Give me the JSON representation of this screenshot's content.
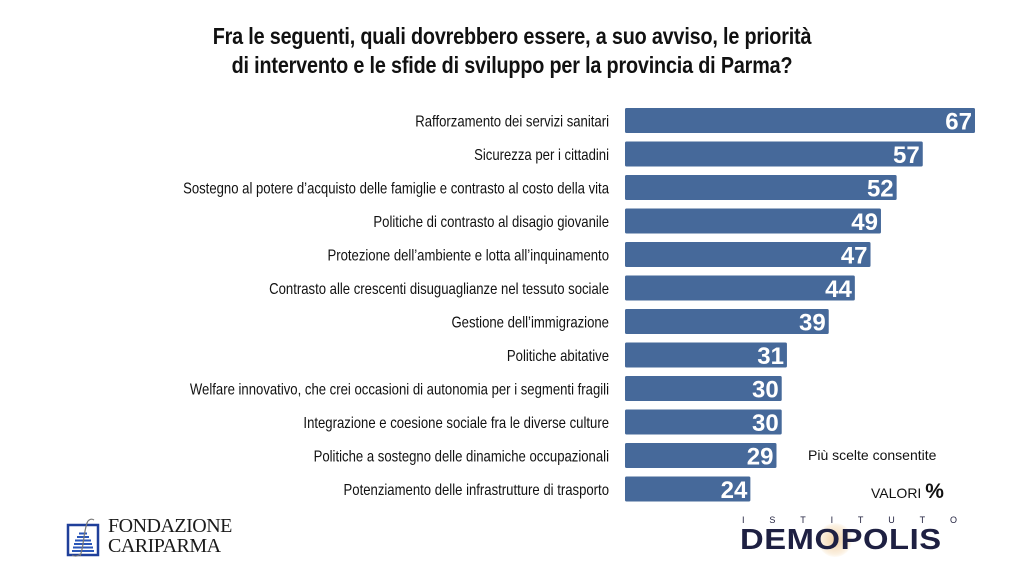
{
  "title": {
    "line1": "Fra le seguenti, quali dovrebbero essere, a suo avviso, le priorità",
    "line2": "di intervento e le sfide di sviluppo per la provincia di Parma?"
  },
  "colors": {
    "bar": "#46699a",
    "value_text": "#ffffff",
    "label_text": "#111111"
  },
  "chart_data": {
    "type": "bar",
    "orientation": "horizontal",
    "title": "Fra le seguenti, quali dovrebbero essere, a suo avviso, le priorità di intervento e le sfide di sviluppo per la provincia di Parma?",
    "xlabel": "",
    "ylabel": "",
    "unit": "%",
    "xlim": [
      0,
      67
    ],
    "grid": false,
    "legend": "none",
    "data_labels": true,
    "categories": [
      "Rafforzamento dei servizi sanitari",
      "Sicurezza per i cittadini",
      "Sostegno al potere d’acquisto delle famiglie e contrasto al costo della vita",
      "Politiche di contrasto al disagio giovanile",
      "Protezione dell’ambiente e lotta all’inquinamento",
      "Contrasto alle crescenti disuguaglianze nel tessuto sociale",
      "Gestione dell’immigrazione",
      "Politiche abitative",
      "Welfare innovativo, che crei occasioni di autonomia per i segmenti fragili",
      "Integrazione e coesione sociale fra le diverse culture",
      "Politiche a sostegno delle dinamiche occupazionali",
      "Potenziamento delle infrastrutture di trasporto"
    ],
    "values": [
      67,
      57,
      52,
      49,
      47,
      44,
      39,
      31,
      30,
      30,
      29,
      24
    ]
  },
  "notes": {
    "multiple_choice": "Più scelte consentite",
    "values_label": "VALORI",
    "values_unit": "%"
  },
  "logos": {
    "left": {
      "line1": "FONDAZIONE",
      "line2": "CARIPARMA",
      "icon": "fondazione-cariparma-emblem"
    },
    "right": {
      "top": [
        "I",
        "S",
        "T",
        "I",
        "T",
        "U",
        "T",
        "O"
      ],
      "main": "DEMOPOLIS"
    }
  }
}
